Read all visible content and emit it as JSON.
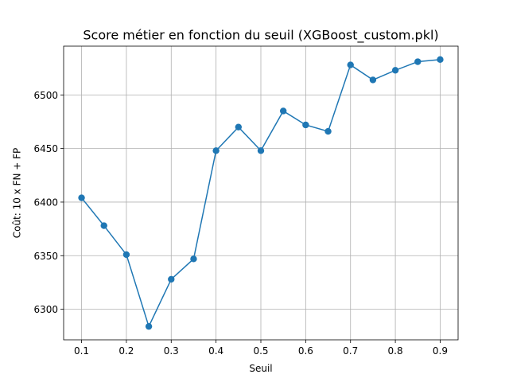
{
  "chart_data": {
    "type": "line",
    "title": "Score métier en fonction du seuil (XGBoost_custom.pkl)",
    "xlabel": "Seuil",
    "ylabel": "Coût: 10 x FN + FP",
    "x": [
      0.1,
      0.15,
      0.2,
      0.25,
      0.3,
      0.35,
      0.4,
      0.45,
      0.5,
      0.55,
      0.6,
      0.65,
      0.7,
      0.75,
      0.8,
      0.85,
      0.9
    ],
    "series": [
      {
        "values": [
          6404,
          6378,
          6351,
          6284,
          6328,
          6347,
          6448,
          6470,
          6448,
          6485,
          6472,
          6466,
          6528,
          6514,
          6523,
          6531,
          6533
        ],
        "color": "#1f77b4",
        "marker": "circle"
      }
    ],
    "xticks": [
      "0.1",
      "0.2",
      "0.3",
      "0.4",
      "0.5",
      "0.6",
      "0.7",
      "0.8",
      "0.9"
    ],
    "xtick_values": [
      0.1,
      0.2,
      0.3,
      0.4,
      0.5,
      0.6,
      0.7,
      0.8,
      0.9
    ],
    "yticks": [
      "6300",
      "6350",
      "6400",
      "6450",
      "6500"
    ],
    "ytick_values": [
      6300,
      6350,
      6400,
      6450,
      6500
    ],
    "xlim": [
      0.06,
      0.94
    ],
    "ylim": [
      6271.5,
      6545.5
    ],
    "grid": true
  }
}
